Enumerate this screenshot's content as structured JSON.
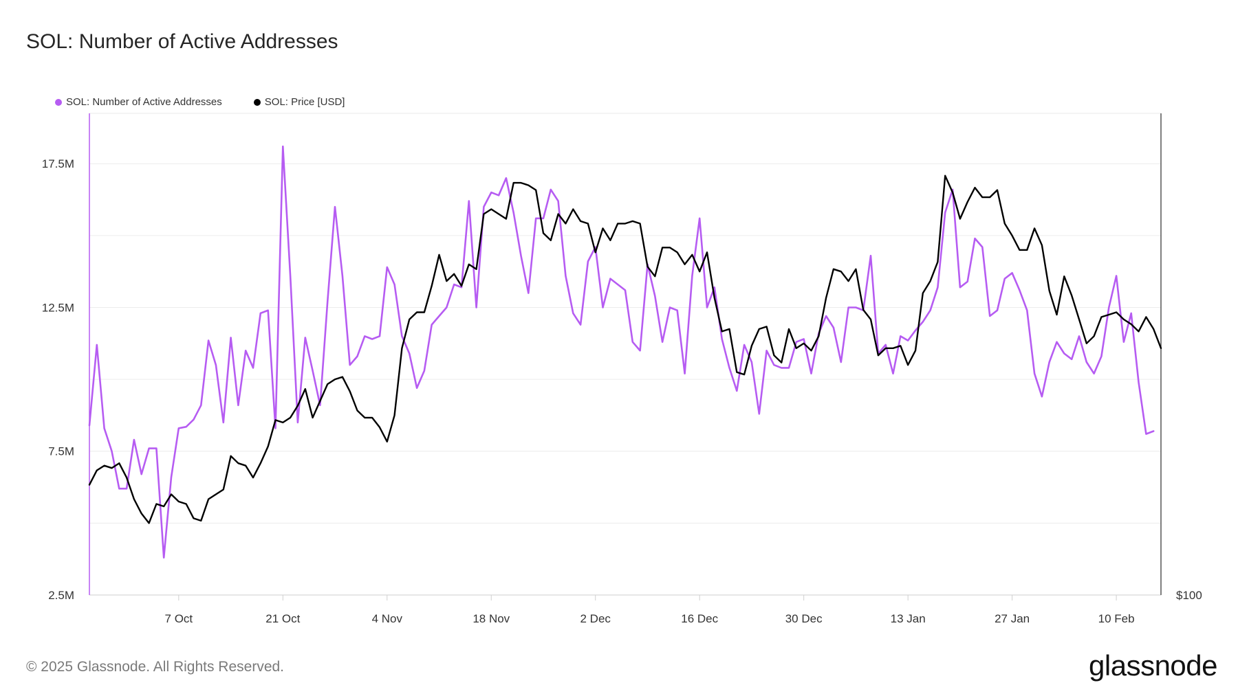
{
  "header": {
    "title": "SOL: Number of Active Addresses"
  },
  "footer": {
    "copyright": "© 2025 Glassnode. All Rights Reserved.",
    "brand": "glassnode"
  },
  "chart_data": {
    "type": "line",
    "title": "SOL: Number of Active Addresses",
    "xlabel": "",
    "ylabel": "",
    "grid": true,
    "legend": "top-left",
    "x_tick_labels": [
      "7 Oct",
      "21 Oct",
      "4 Nov",
      "18 Nov",
      "2 Dec",
      "16 Dec",
      "30 Dec",
      "13 Jan",
      "27 Jan",
      "10 Feb"
    ],
    "x_tick_day_index": [
      12,
      26,
      40,
      54,
      68,
      82,
      96,
      110,
      124,
      138
    ],
    "x_range_days": [
      0,
      144
    ],
    "y_left": {
      "ylim": [
        2.5,
        19.25
      ],
      "unit": "M",
      "ticks": [
        2.5,
        7.5,
        12.5,
        17.5
      ],
      "tick_labels": [
        "2.5M",
        "7.5M",
        "12.5M",
        "17.5M"
      ],
      "minor_ticks": [
        5,
        10,
        15
      ]
    },
    "y_right": {
      "tick_labels": [
        "$100"
      ],
      "ylim": [
        100,
        301
      ]
    },
    "series": [
      {
        "name": "SOL: Number of Active Addresses",
        "color": "#b65cf2",
        "axis": "left",
        "unit": "M",
        "values": [
          8.4,
          11.2,
          8.3,
          7.5,
          6.2,
          6.2,
          7.9,
          6.7,
          7.6,
          7.6,
          3.8,
          6.6,
          8.3,
          8.35,
          8.6,
          9.1,
          11.35,
          10.5,
          8.5,
          11.45,
          9.1,
          11.0,
          10.4,
          12.3,
          12.4,
          8.3,
          18.1,
          13.6,
          8.5,
          11.45,
          10.3,
          9.1,
          12.7,
          16.0,
          13.6,
          10.5,
          10.8,
          11.5,
          11.4,
          11.5,
          13.9,
          13.3,
          11.5,
          10.9,
          9.7,
          10.3,
          11.9,
          12.2,
          12.5,
          13.3,
          13.2,
          16.2,
          12.5,
          16.0,
          16.5,
          16.4,
          17.0,
          15.8,
          14.3,
          13.0,
          15.6,
          15.6,
          16.6,
          16.2,
          13.6,
          12.3,
          11.9,
          14.1,
          14.6,
          12.5,
          13.5,
          13.3,
          13.1,
          11.3,
          11.0,
          14.0,
          12.9,
          11.3,
          12.5,
          12.4,
          10.2,
          13.6,
          15.6,
          12.5,
          13.2,
          11.4,
          10.4,
          9.6,
          11.2,
          10.6,
          8.8,
          11.0,
          10.5,
          10.4,
          10.4,
          11.3,
          11.4,
          10.2,
          11.6,
          12.2,
          11.8,
          10.6,
          12.5,
          12.5,
          12.4,
          14.3,
          10.9,
          11.2,
          10.2,
          11.5,
          11.35,
          11.7,
          12.0,
          12.4,
          13.2,
          15.8,
          16.6,
          13.2,
          13.4,
          14.9,
          14.6,
          12.2,
          12.4,
          13.5,
          13.7,
          13.1,
          12.4,
          10.2,
          9.4,
          10.6,
          11.3,
          10.9,
          10.7,
          11.5,
          10.6,
          10.2,
          10.8,
          12.5,
          13.6,
          11.3,
          12.3,
          9.9,
          8.1,
          8.2
        ]
      },
      {
        "name": "SOL: Price [USD]",
        "color": "#000000",
        "axis": "right",
        "unit": "USD",
        "values": [
          146,
          152,
          154,
          153,
          155,
          149,
          140,
          134,
          130,
          138,
          137,
          142,
          139,
          138,
          132,
          131,
          140,
          142,
          144,
          158,
          155,
          154,
          149,
          155,
          162,
          173,
          172,
          174,
          179,
          186,
          174,
          181,
          188,
          190,
          191,
          185,
          177,
          174,
          174,
          170,
          164,
          175,
          203,
          215,
          218,
          218,
          229,
          242,
          231,
          234,
          229,
          238,
          236,
          259,
          261,
          259,
          257,
          272,
          272,
          271,
          269,
          251,
          248,
          259,
          255,
          261,
          256,
          255,
          243,
          253,
          248,
          255,
          255,
          256,
          255,
          237,
          233,
          245,
          245,
          243,
          238,
          242,
          235,
          243,
          224,
          210,
          211,
          193,
          192,
          204,
          211,
          212,
          200,
          197,
          211,
          203,
          205,
          202,
          208,
          224,
          236,
          235,
          231,
          236,
          219,
          215,
          200,
          203,
          203,
          204,
          196,
          202,
          226,
          231,
          239,
          275,
          268,
          257,
          264,
          270,
          266,
          266,
          269,
          255,
          250,
          244,
          244,
          253,
          246,
          227,
          217,
          233,
          225,
          215,
          205,
          208,
          216,
          217,
          218,
          215,
          213,
          210,
          216,
          211,
          203
        ]
      }
    ]
  }
}
